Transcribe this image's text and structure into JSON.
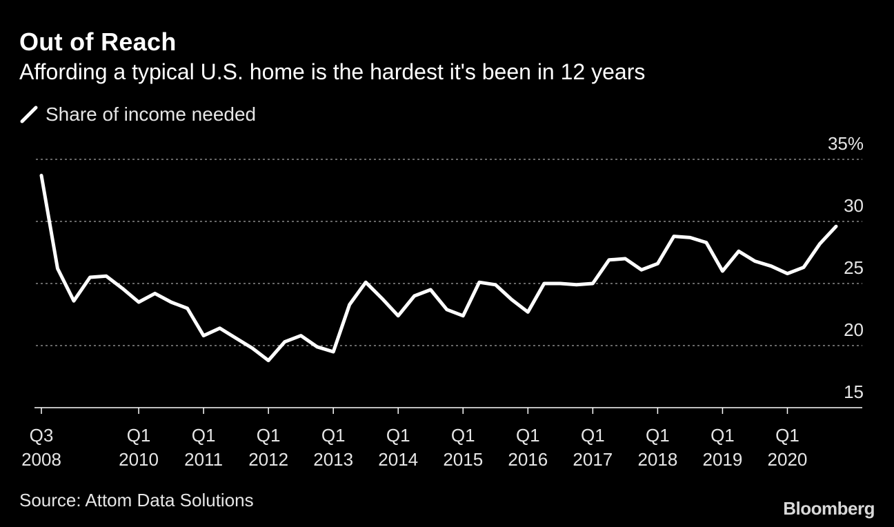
{
  "header": {
    "title": "Out of Reach",
    "subtitle": "Affording a typical U.S. home is the hardest it's been in 12 years"
  },
  "legend": {
    "label": "Share of income needed",
    "icon": "line-swatch-icon"
  },
  "footer": {
    "source": "Source: Attom Data Solutions",
    "brand": "Bloomberg"
  },
  "colors": {
    "background": "#000000",
    "line": "#ffffff",
    "grid": "#8a8a8a",
    "text": "#e6e6e6"
  },
  "chart_data": {
    "type": "line",
    "title": "Out of Reach",
    "subtitle": "Affording a typical U.S. home is the hardest it's been in 12 years",
    "ylabel": "",
    "xlabel": "",
    "ylim": [
      15,
      35
    ],
    "y_ticks": [
      "35%",
      "30",
      "25",
      "20",
      "15"
    ],
    "y_tick_values": [
      35,
      30,
      25,
      20,
      15
    ],
    "grid": "horizontal dotted",
    "legend_position": "top-left",
    "x_ticks": [
      {
        "quarter": "Q3",
        "year": "2008",
        "index": 0
      },
      {
        "quarter": "Q1",
        "year": "2010",
        "index": 6
      },
      {
        "quarter": "Q1",
        "year": "2011",
        "index": 10
      },
      {
        "quarter": "Q1",
        "year": "2012",
        "index": 14
      },
      {
        "quarter": "Q1",
        "year": "2013",
        "index": 18
      },
      {
        "quarter": "Q1",
        "year": "2014",
        "index": 22
      },
      {
        "quarter": "Q1",
        "year": "2015",
        "index": 26
      },
      {
        "quarter": "Q1",
        "year": "2016",
        "index": 30
      },
      {
        "quarter": "Q1",
        "year": "2017",
        "index": 34
      },
      {
        "quarter": "Q1",
        "year": "2018",
        "index": 38
      },
      {
        "quarter": "Q1",
        "year": "2019",
        "index": 42
      },
      {
        "quarter": "Q1",
        "year": "2020",
        "index": 46
      }
    ],
    "series": [
      {
        "name": "Share of income needed",
        "x": [
          "Q3 2008",
          "Q4 2008",
          "Q1 2009",
          "Q2 2009",
          "Q3 2009",
          "Q4 2009",
          "Q1 2010",
          "Q2 2010",
          "Q3 2010",
          "Q4 2010",
          "Q1 2011",
          "Q2 2011",
          "Q3 2011",
          "Q4 2011",
          "Q1 2012",
          "Q2 2012",
          "Q3 2012",
          "Q4 2012",
          "Q1 2013",
          "Q2 2013",
          "Q3 2013",
          "Q4 2013",
          "Q1 2014",
          "Q2 2014",
          "Q3 2014",
          "Q4 2014",
          "Q1 2015",
          "Q2 2015",
          "Q3 2015",
          "Q4 2015",
          "Q1 2016",
          "Q2 2016",
          "Q3 2016",
          "Q4 2016",
          "Q1 2017",
          "Q2 2017",
          "Q3 2017",
          "Q4 2017",
          "Q1 2018",
          "Q2 2018",
          "Q3 2018",
          "Q4 2018",
          "Q1 2019",
          "Q2 2019",
          "Q3 2019",
          "Q4 2019",
          "Q1 2020",
          "Q2 2020",
          "Q3 2020",
          "Q4 2020"
        ],
        "values": [
          33.7,
          26.2,
          23.6,
          25.5,
          25.6,
          24.6,
          23.5,
          24.2,
          23.5,
          23.0,
          20.8,
          21.4,
          20.6,
          19.8,
          18.8,
          20.3,
          20.8,
          19.9,
          19.5,
          23.3,
          25.1,
          23.8,
          22.4,
          24.0,
          24.5,
          22.9,
          22.4,
          25.1,
          24.9,
          23.7,
          22.7,
          25.0,
          25.0,
          24.9,
          25.0,
          26.9,
          27.0,
          26.1,
          26.6,
          28.8,
          28.7,
          28.3,
          26.0,
          27.6,
          26.8,
          26.4,
          25.8,
          26.3,
          28.2,
          29.6
        ]
      }
    ]
  }
}
